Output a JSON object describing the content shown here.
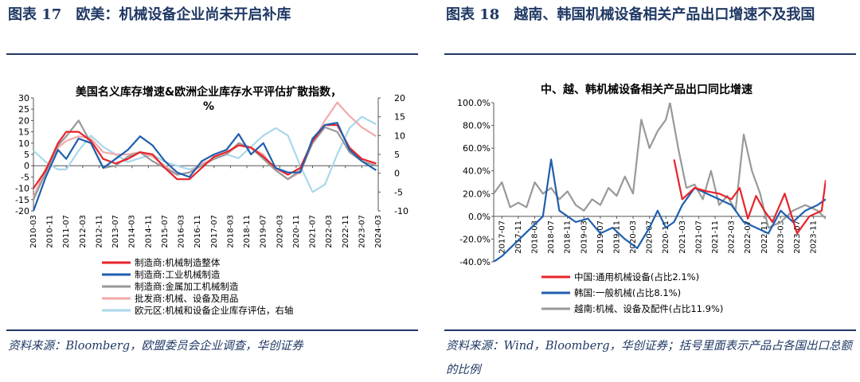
{
  "left": {
    "figure_title": "图表 17　欧美：机械设备企业尚未开启补库",
    "source": "资料来源：Bloomberg，欧盟委员会企业调查，华创证券"
  },
  "right": {
    "figure_title": "图表 18　越南、韩国机械设备相关产品出口增速不及我国",
    "source": "资料来源：Wind，Bloomberg，华创证券；括号里面表示产品占各国出口总额的比例"
  },
  "chart_data": [
    {
      "type": "line",
      "title": "美国名义库存增速&欧洲企业库存水平评估扩散指数，%",
      "title_lines": [
        "美国名义库存增速&欧洲企业库存水平评估扩散指数，",
        "%"
      ],
      "x_tick_labels": [
        "2010-03",
        "2010-11",
        "2011-07",
        "2012-03",
        "2012-11",
        "2013-07",
        "2014-03",
        "2014-11",
        "2015-07",
        "2016-03",
        "2016-11",
        "2017-07",
        "2018-03",
        "2018-11",
        "2019-07",
        "2020-03",
        "2020-11",
        "2021-07",
        "2022-03",
        "2022-11",
        "2023-07",
        "2024-03"
      ],
      "x_range": [
        "2010-03",
        "2024-03"
      ],
      "y_left": {
        "min": -20,
        "max": 30,
        "ticks": [
          "30",
          "25",
          "20",
          "15",
          "10",
          "5",
          "0",
          "-5",
          "-10",
          "-15",
          "-20"
        ]
      },
      "y_right": {
        "min": -10,
        "max": 20,
        "ticks": [
          "20",
          "15",
          "10",
          "5",
          "0",
          "-5",
          "-10"
        ]
      },
      "legend_position": "bottom",
      "grid": false,
      "series": [
        {
          "name": "制造商:机械制造整体",
          "color": "#e8232a",
          "axis": "left",
          "points": [
            [
              "2010-03",
              -10
            ],
            [
              "2010-09",
              -2
            ],
            [
              "2011-03",
              10
            ],
            [
              "2011-07",
              15
            ],
            [
              "2012-01",
              15
            ],
            [
              "2012-07",
              11
            ],
            [
              "2013-01",
              3
            ],
            [
              "2013-07",
              1
            ],
            [
              "2014-01",
              3
            ],
            [
              "2014-07",
              6
            ],
            [
              "2015-01",
              5
            ],
            [
              "2015-07",
              -1
            ],
            [
              "2016-01",
              -6
            ],
            [
              "2016-07",
              -6
            ],
            [
              "2017-01",
              -1
            ],
            [
              "2017-07",
              4
            ],
            [
              "2018-01",
              6
            ],
            [
              "2018-07",
              9
            ],
            [
              "2019-01",
              8
            ],
            [
              "2019-07",
              4
            ],
            [
              "2020-01",
              -1
            ],
            [
              "2020-07",
              -4
            ],
            [
              "2021-01",
              -1
            ],
            [
              "2021-07",
              11
            ],
            [
              "2022-01",
              18
            ],
            [
              "2022-07",
              18
            ],
            [
              "2023-01",
              8
            ],
            [
              "2023-07",
              3
            ],
            [
              "2024-02",
              1
            ]
          ]
        },
        {
          "name": "制造商:工业机械制造",
          "color": "#1f5fae",
          "axis": "left",
          "points": [
            [
              "2010-03",
              -20
            ],
            [
              "2010-09",
              -5
            ],
            [
              "2011-03",
              7
            ],
            [
              "2011-07",
              3
            ],
            [
              "2012-01",
              12
            ],
            [
              "2012-07",
              10
            ],
            [
              "2013-01",
              -1
            ],
            [
              "2013-07",
              3
            ],
            [
              "2014-01",
              7
            ],
            [
              "2014-07",
              13
            ],
            [
              "2015-01",
              9
            ],
            [
              "2015-07",
              2
            ],
            [
              "2016-01",
              -3
            ],
            [
              "2016-07",
              -5
            ],
            [
              "2017-01",
              2
            ],
            [
              "2017-07",
              5
            ],
            [
              "2018-01",
              7
            ],
            [
              "2018-07",
              14
            ],
            [
              "2019-01",
              5
            ],
            [
              "2019-07",
              10
            ],
            [
              "2020-01",
              -1
            ],
            [
              "2020-07",
              -3
            ],
            [
              "2021-01",
              -3
            ],
            [
              "2021-07",
              12
            ],
            [
              "2022-01",
              18
            ],
            [
              "2022-07",
              19
            ],
            [
              "2023-01",
              7
            ],
            [
              "2023-07",
              2
            ],
            [
              "2024-02",
              -2
            ]
          ]
        },
        {
          "name": "制造商:金属加工机械制造",
          "color": "#999999",
          "axis": "left",
          "points": [
            [
              "2010-03",
              -15
            ],
            [
              "2010-09",
              -3
            ],
            [
              "2011-03",
              9
            ],
            [
              "2011-07",
              13
            ],
            [
              "2012-01",
              20
            ],
            [
              "2012-07",
              10
            ],
            [
              "2013-01",
              -1
            ],
            [
              "2013-07",
              0
            ],
            [
              "2014-01",
              4
            ],
            [
              "2014-07",
              6
            ],
            [
              "2015-01",
              2
            ],
            [
              "2015-07",
              -1
            ],
            [
              "2016-01",
              -4
            ],
            [
              "2016-07",
              -3
            ],
            [
              "2017-01",
              0
            ],
            [
              "2017-07",
              3
            ],
            [
              "2018-01",
              5
            ],
            [
              "2018-07",
              10
            ],
            [
              "2019-01",
              8
            ],
            [
              "2019-07",
              3
            ],
            [
              "2020-01",
              -2
            ],
            [
              "2020-07",
              -6
            ],
            [
              "2021-01",
              -2
            ],
            [
              "2021-07",
              10
            ],
            [
              "2022-01",
              17
            ],
            [
              "2022-07",
              15
            ],
            [
              "2023-01",
              6
            ],
            [
              "2023-07",
              2
            ],
            [
              "2024-02",
              0
            ]
          ]
        },
        {
          "name": "批发商:机械、设备及用品",
          "color": "#f2aaaa",
          "axis": "left",
          "points": [
            [
              "2010-03",
              -14
            ],
            [
              "2010-09",
              -1
            ],
            [
              "2011-03",
              8
            ],
            [
              "2011-07",
              11
            ],
            [
              "2012-01",
              13
            ],
            [
              "2012-07",
              12
            ],
            [
              "2013-01",
              6
            ],
            [
              "2013-07",
              5
            ],
            [
              "2014-01",
              5
            ],
            [
              "2014-07",
              6
            ],
            [
              "2015-01",
              4
            ],
            [
              "2015-07",
              0
            ],
            [
              "2016-01",
              -4
            ],
            [
              "2016-07",
              -3
            ],
            [
              "2017-01",
              1
            ],
            [
              "2017-07",
              3
            ],
            [
              "2018-01",
              5
            ],
            [
              "2018-07",
              9
            ],
            [
              "2019-01",
              8
            ],
            [
              "2019-07",
              5
            ],
            [
              "2020-01",
              -2
            ],
            [
              "2020-07",
              -6
            ],
            [
              "2021-01",
              -3
            ],
            [
              "2021-07",
              10
            ],
            [
              "2022-01",
              20
            ],
            [
              "2022-07",
              28
            ],
            [
              "2023-01",
              22
            ],
            [
              "2023-07",
              17
            ],
            [
              "2024-02",
              13
            ]
          ]
        },
        {
          "name": "欧元区:机械和设备企业库存评估，右轴",
          "color": "#a9d8ea",
          "axis": "right",
          "points": [
            [
              "2010-03",
              6
            ],
            [
              "2010-09",
              3
            ],
            [
              "2011-03",
              1
            ],
            [
              "2011-07",
              1
            ],
            [
              "2012-01",
              6
            ],
            [
              "2012-07",
              10
            ],
            [
              "2013-01",
              7
            ],
            [
              "2013-07",
              5
            ],
            [
              "2014-01",
              3
            ],
            [
              "2014-07",
              4
            ],
            [
              "2015-01",
              5
            ],
            [
              "2015-07",
              3
            ],
            [
              "2016-01",
              2
            ],
            [
              "2016-07",
              1
            ],
            [
              "2017-01",
              2
            ],
            [
              "2017-07",
              4
            ],
            [
              "2018-01",
              5
            ],
            [
              "2018-07",
              4
            ],
            [
              "2019-01",
              7
            ],
            [
              "2019-07",
              10
            ],
            [
              "2020-01",
              12
            ],
            [
              "2020-07",
              10
            ],
            [
              "2021-01",
              2
            ],
            [
              "2021-07",
              -5
            ],
            [
              "2022-01",
              -3
            ],
            [
              "2022-07",
              5
            ],
            [
              "2023-01",
              12
            ],
            [
              "2023-07",
              15
            ],
            [
              "2024-02",
              13
            ]
          ]
        }
      ]
    },
    {
      "type": "line",
      "title": "中、越、韩机械设备相关产品出口同比增速",
      "x_tick_labels": [
        "2017-07",
        "2017-11",
        "2018-03",
        "2018-07",
        "2018-11",
        "2019-03",
        "2019-07",
        "2019-11",
        "2020-03",
        "2020-07",
        "2020-11",
        "2021-03",
        "2021-07",
        "2021-11",
        "2022-03",
        "2022-07",
        "2022-11",
        "2023-03",
        "2023-07",
        "2023-11"
      ],
      "x_range": [
        "2017-05",
        "2024-02"
      ],
      "y_range": [
        -40,
        100
      ],
      "y_tick_labels": [
        "100.0%",
        "80.0%",
        "60.0%",
        "40.0%",
        "20.0%",
        "0.0%",
        "-20.0%",
        "-40.0%"
      ],
      "legend_position": "bottom",
      "grid": false,
      "series": [
        {
          "name": "中国:通用机械设备(占比2.1%)",
          "color": "#e8232a",
          "points": [
            [
              "2021-01",
              50
            ],
            [
              "2021-03",
              15
            ],
            [
              "2021-06",
              25
            ],
            [
              "2021-09",
              22
            ],
            [
              "2021-12",
              20
            ],
            [
              "2022-03",
              15
            ],
            [
              "2022-05",
              25
            ],
            [
              "2022-07",
              -2
            ],
            [
              "2022-09",
              18
            ],
            [
              "2022-11",
              5
            ],
            [
              "2023-01",
              -5
            ],
            [
              "2023-04",
              20
            ],
            [
              "2023-07",
              -15
            ],
            [
              "2023-10",
              0
            ],
            [
              "2024-01",
              5
            ],
            [
              "2024-02",
              32
            ]
          ]
        },
        {
          "name": "韩国:一般机械(占比8.1%)",
          "color": "#1f5fae",
          "points": [
            [
              "2017-05",
              -40
            ],
            [
              "2017-07",
              -35
            ],
            [
              "2018-05",
              0
            ],
            [
              "2018-07",
              50
            ],
            [
              "2018-09",
              5
            ],
            [
              "2019-01",
              -5
            ],
            [
              "2019-04",
              -2
            ],
            [
              "2019-07",
              -15
            ],
            [
              "2019-10",
              -10
            ],
            [
              "2020-01",
              -20
            ],
            [
              "2020-04",
              -28
            ],
            [
              "2020-07",
              -10
            ],
            [
              "2020-09",
              5
            ],
            [
              "2020-11",
              -10
            ],
            [
              "2021-01",
              -5
            ],
            [
              "2021-03",
              10
            ],
            [
              "2021-06",
              25
            ],
            [
              "2021-09",
              20
            ],
            [
              "2021-12",
              15
            ],
            [
              "2022-03",
              10
            ],
            [
              "2022-06",
              -5
            ],
            [
              "2022-09",
              -10
            ],
            [
              "2022-12",
              -15
            ],
            [
              "2023-03",
              5
            ],
            [
              "2023-06",
              -5
            ],
            [
              "2023-09",
              5
            ],
            [
              "2023-12",
              10
            ],
            [
              "2024-02",
              15
            ]
          ]
        },
        {
          "name": "越南:机械、设备及配件(占比11.9%)",
          "color": "#999999",
          "points": [
            [
              "2017-05",
              20
            ],
            [
              "2017-07",
              30
            ],
            [
              "2017-09",
              8
            ],
            [
              "2017-11",
              12
            ],
            [
              "2018-01",
              8
            ],
            [
              "2018-03",
              30
            ],
            [
              "2018-05",
              20
            ],
            [
              "2018-07",
              25
            ],
            [
              "2018-09",
              15
            ],
            [
              "2018-11",
              22
            ],
            [
              "2019-01",
              10
            ],
            [
              "2019-03",
              5
            ],
            [
              "2019-05",
              15
            ],
            [
              "2019-07",
              10
            ],
            [
              "2019-09",
              25
            ],
            [
              "2019-11",
              18
            ],
            [
              "2020-01",
              35
            ],
            [
              "2020-03",
              20
            ],
            [
              "2020-05",
              85
            ],
            [
              "2020-07",
              60
            ],
            [
              "2020-09",
              75
            ],
            [
              "2020-11",
              85
            ],
            [
              "2020-12",
              100
            ],
            [
              "2021-02",
              60
            ],
            [
              "2021-04",
              25
            ],
            [
              "2021-06",
              28
            ],
            [
              "2021-08",
              15
            ],
            [
              "2021-10",
              40
            ],
            [
              "2021-12",
              10
            ],
            [
              "2022-02",
              18
            ],
            [
              "2022-04",
              5
            ],
            [
              "2022-06",
              72
            ],
            [
              "2022-08",
              40
            ],
            [
              "2022-10",
              20
            ],
            [
              "2022-12",
              -10
            ],
            [
              "2023-03",
              -5
            ],
            [
              "2023-06",
              5
            ],
            [
              "2023-09",
              10
            ],
            [
              "2023-12",
              5
            ],
            [
              "2024-02",
              -2
            ]
          ]
        }
      ]
    }
  ]
}
